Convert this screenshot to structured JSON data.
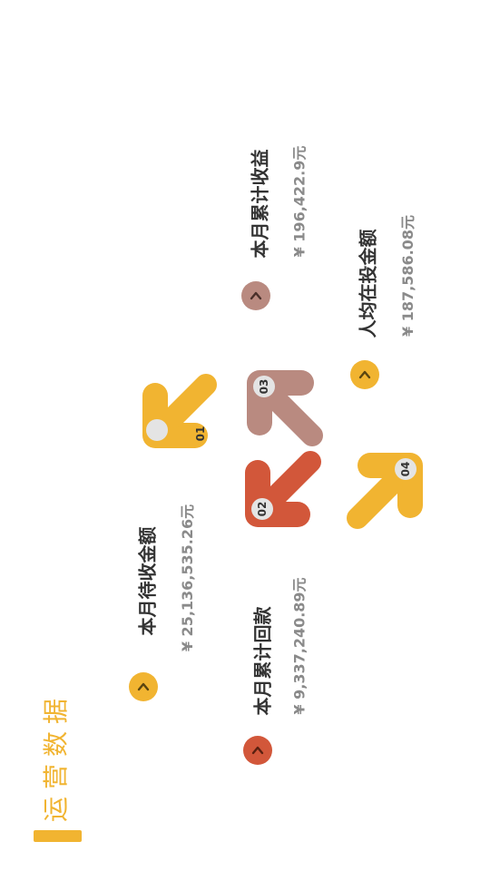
{
  "title": "运营数据",
  "colors": {
    "yellow": "#F1B431",
    "red": "#D2573A",
    "mauve": "#B98A80",
    "badge": "#e4e4e4",
    "label": "#333333",
    "value": "#8a8a8a"
  },
  "stats": [
    {
      "label": "本月待收金额",
      "value": "¥ 25,136,535.26元",
      "icon": "chevron-up-icon"
    },
    {
      "label": "本月累计回款",
      "value": "¥ 9,337,240.89元",
      "icon": "chevron-up-icon"
    },
    {
      "label": "本月累计收益",
      "value": "¥ 196,422.9元",
      "icon": "chevron-up-icon"
    },
    {
      "label": "人均在投金额",
      "value": "¥ 187,586.08元",
      "icon": "chevron-up-icon"
    }
  ],
  "arrows": [
    {
      "badge": "01",
      "icon": "arrow-icon"
    },
    {
      "badge": "02",
      "icon": "arrow-icon"
    },
    {
      "badge": "03",
      "icon": "arrow-icon"
    },
    {
      "badge": "04",
      "icon": "arrow-icon"
    }
  ]
}
